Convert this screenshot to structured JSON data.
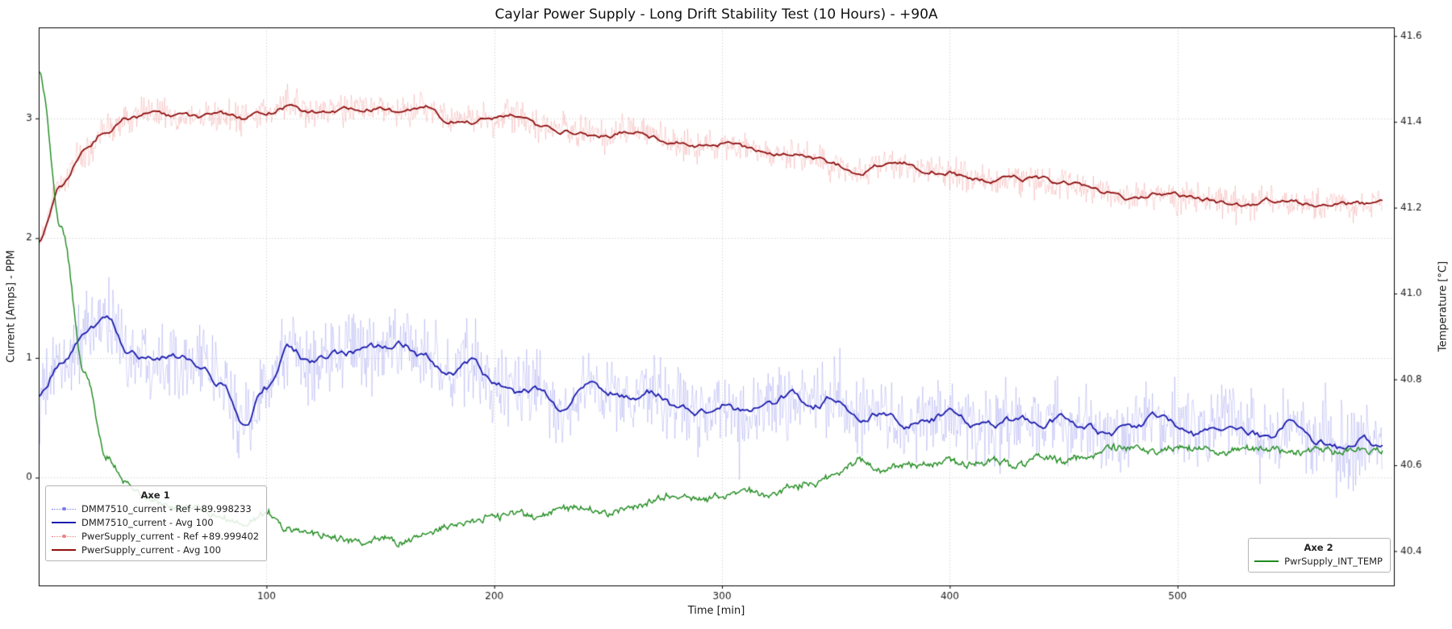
{
  "chart_data": {
    "type": "line",
    "title": "Caylar Power Supply - Long Drift Stability Test (10 Hours) - +90A",
    "xlabel": "Time [min]",
    "ylabel_left": "Current [Amps] - PPM",
    "ylabel_right": "Temperature [°C]",
    "xlim": [
      0,
      595
    ],
    "ylim_left": [
      -0.9,
      3.76
    ],
    "ylim_right": [
      40.32,
      41.62
    ],
    "xticks": [
      100,
      200,
      300,
      400,
      500
    ],
    "yticks_left": [
      0,
      1,
      2,
      3
    ],
    "yticks_right": [
      "40.4",
      "40.6",
      "40.8",
      "41.0",
      "41.2",
      "41.4",
      "41.6"
    ],
    "grid": true,
    "background": "#ffffff",
    "x": [
      0,
      10,
      20,
      30,
      40,
      50,
      60,
      70,
      80,
      90,
      100,
      110,
      120,
      130,
      140,
      150,
      160,
      170,
      180,
      190,
      200,
      210,
      220,
      230,
      240,
      250,
      260,
      270,
      280,
      290,
      300,
      310,
      320,
      330,
      340,
      350,
      360,
      370,
      380,
      390,
      400,
      410,
      420,
      430,
      440,
      450,
      460,
      470,
      480,
      490,
      500,
      510,
      520,
      530,
      540,
      550,
      560,
      570,
      580,
      590
    ],
    "paths": {
      "dmm": [
        0.65,
        0.95,
        1.15,
        1.35,
        1.05,
        1.0,
        1.02,
        0.95,
        0.8,
        0.45,
        0.75,
        1.08,
        0.95,
        1.02,
        1.05,
        1.06,
        1.1,
        1.0,
        0.85,
        0.95,
        0.8,
        0.72,
        0.75,
        0.55,
        0.78,
        0.7,
        0.65,
        0.72,
        0.6,
        0.55,
        0.62,
        0.55,
        0.6,
        0.68,
        0.6,
        0.68,
        0.5,
        0.55,
        0.45,
        0.48,
        0.55,
        0.45,
        0.42,
        0.48,
        0.42,
        0.5,
        0.42,
        0.35,
        0.42,
        0.5,
        0.42,
        0.35,
        0.45,
        0.4,
        0.35,
        0.45,
        0.3,
        0.25,
        0.32,
        0.28
      ],
      "psu": [
        1.95,
        2.45,
        2.72,
        2.9,
        3.0,
        3.05,
        3.0,
        3.0,
        3.02,
        3.0,
        3.05,
        3.1,
        3.05,
        3.07,
        3.1,
        3.08,
        3.05,
        3.1,
        3.0,
        2.97,
        3.0,
        3.02,
        2.93,
        2.9,
        2.87,
        2.85,
        2.9,
        2.85,
        2.8,
        2.75,
        2.78,
        2.75,
        2.72,
        2.7,
        2.67,
        2.6,
        2.55,
        2.6,
        2.62,
        2.57,
        2.55,
        2.5,
        2.47,
        2.5,
        2.48,
        2.45,
        2.42,
        2.38,
        2.33,
        2.37,
        2.35,
        2.33,
        2.3,
        2.28,
        2.32,
        2.3,
        2.27,
        2.3,
        2.27,
        2.3
      ],
      "temp": [
        41.52,
        41.15,
        40.82,
        40.62,
        40.55,
        40.52,
        40.5,
        40.5,
        40.48,
        40.46,
        40.49,
        40.45,
        40.44,
        40.43,
        40.42,
        40.43,
        40.42,
        40.44,
        40.46,
        40.47,
        40.48,
        40.49,
        40.48,
        40.5,
        40.5,
        40.49,
        40.5,
        40.52,
        40.53,
        40.52,
        40.53,
        40.54,
        40.53,
        40.55,
        40.56,
        40.58,
        40.61,
        40.59,
        40.6,
        40.6,
        40.61,
        40.6,
        40.61,
        40.6,
        40.62,
        40.61,
        40.62,
        40.64,
        40.64,
        40.63,
        40.64,
        40.64,
        40.63,
        40.64,
        40.64,
        40.63,
        40.64,
        40.63,
        40.64,
        40.63
      ]
    },
    "series": [
      {
        "name": "DMM7510_current - Ref +89.998233",
        "axis": "left",
        "path": "dmm",
        "render": "raw",
        "color": "#7b7bec",
        "noise_band": 0.3
      },
      {
        "name": "DMM7510_current - Avg 100",
        "axis": "left",
        "path": "dmm",
        "render": "avg",
        "color": "#1b1bae",
        "wiggle": 0.05
      },
      {
        "name": "PwerSupply_current - Ref +89.999402",
        "axis": "left",
        "path": "psu",
        "render": "raw",
        "color": "#f08080",
        "noise_band": 0.12
      },
      {
        "name": "PwerSupply_current - Avg 100",
        "axis": "left",
        "path": "psu",
        "render": "avg",
        "color": "#8f0f0f",
        "wiggle": 0.032
      },
      {
        "name": "PwrSupply_INT_TEMP",
        "axis": "right",
        "path": "temp",
        "render": "noisy-line",
        "color": "#1f8b1f",
        "noise_band": 0.013
      }
    ],
    "legends": [
      {
        "title": "Axe 1",
        "position": "lower-left",
        "entries": [
          {
            "series": 0,
            "sample": "dotted-marker"
          },
          {
            "series": 1,
            "sample": "solid"
          },
          {
            "series": 2,
            "sample": "dotted-marker"
          },
          {
            "series": 3,
            "sample": "solid"
          }
        ]
      },
      {
        "title": "Axe 2",
        "position": "lower-right",
        "entries": [
          {
            "series": 4,
            "sample": "solid"
          }
        ]
      }
    ]
  }
}
